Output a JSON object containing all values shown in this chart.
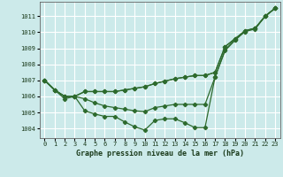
{
  "title": "Graphe pression niveau de la mer (hPa)",
  "bg_color": "#cceaea",
  "grid_color": "#ffffff",
  "line_color": "#2d6a2d",
  "x_ticks": [
    0,
    1,
    2,
    3,
    4,
    5,
    6,
    7,
    8,
    9,
    10,
    11,
    12,
    13,
    14,
    15,
    16,
    17,
    18,
    19,
    20,
    21,
    22,
    23
  ],
  "y_ticks": [
    1004,
    1005,
    1006,
    1007,
    1008,
    1009,
    1010,
    1011
  ],
  "ylim": [
    1003.4,
    1011.9
  ],
  "xlim": [
    -0.5,
    23.5
  ],
  "series": [
    [
      1007.0,
      1006.4,
      1005.85,
      1006.0,
      1005.1,
      1004.9,
      1004.75,
      1004.75,
      1004.4,
      1004.1,
      1003.9,
      1004.5,
      1004.6,
      1004.6,
      1004.35,
      1004.05,
      1004.05,
      1007.2,
      1008.85,
      1009.5,
      1010.05,
      1010.2,
      1011.0,
      1011.5
    ],
    [
      1007.0,
      1006.4,
      1006.0,
      1006.0,
      1005.85,
      1005.6,
      1005.4,
      1005.3,
      1005.2,
      1005.1,
      1005.05,
      1005.3,
      1005.4,
      1005.5,
      1005.5,
      1005.5,
      1005.5,
      1007.2,
      1008.9,
      1009.55,
      1010.1,
      1010.25,
      1011.0,
      1011.5
    ],
    [
      1007.0,
      1006.4,
      1006.0,
      1006.0,
      1006.3,
      1006.3,
      1006.3,
      1006.3,
      1006.4,
      1006.5,
      1006.6,
      1006.8,
      1006.95,
      1007.1,
      1007.2,
      1007.3,
      1007.3,
      1007.5,
      1009.1,
      1009.6,
      1010.1,
      1010.25,
      1011.0,
      1011.5
    ],
    [
      1007.0,
      1006.4,
      1006.0,
      1006.0,
      1006.3,
      1006.3,
      1006.3,
      1006.3,
      1006.4,
      1006.5,
      1006.6,
      1006.8,
      1006.95,
      1007.1,
      1007.2,
      1007.3,
      1007.3,
      1007.5,
      1009.1,
      1009.6,
      1010.05,
      1010.25,
      1011.0,
      1011.5
    ]
  ]
}
